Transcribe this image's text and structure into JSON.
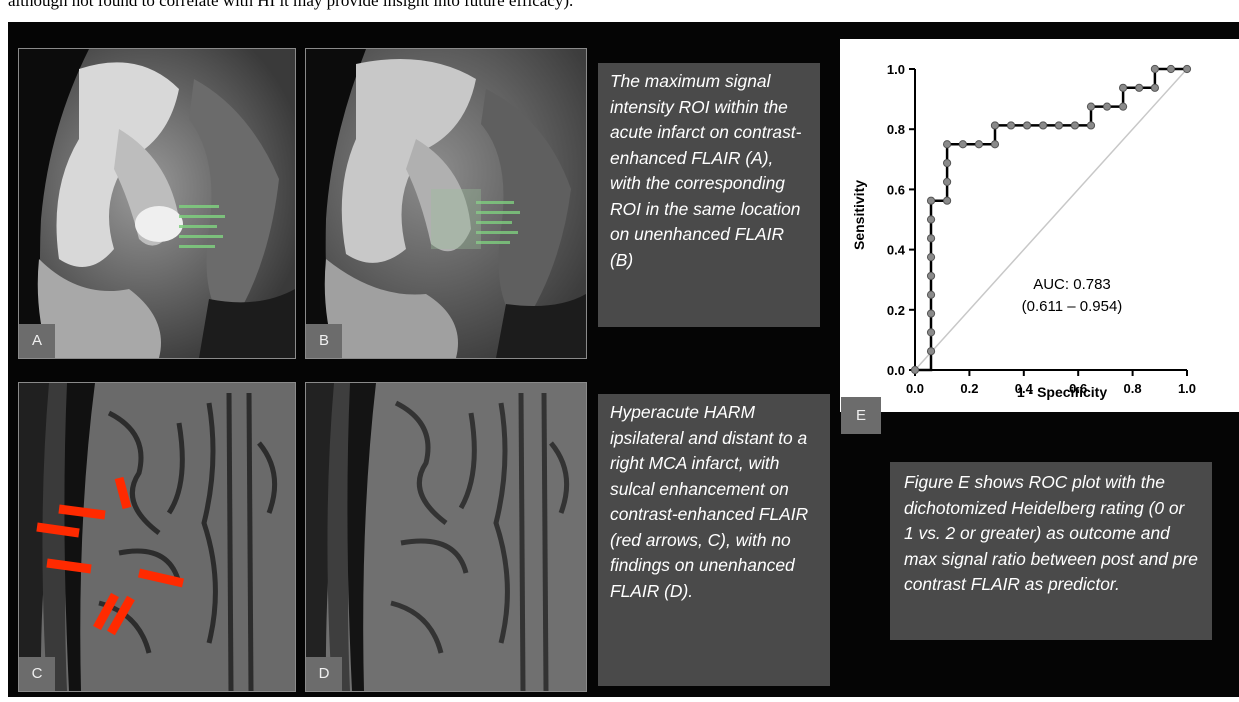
{
  "top_text": "although not found to correlate with HI it may provide insight into future efficacy).",
  "panels": {
    "a": {
      "label": "A"
    },
    "b": {
      "label": "B"
    },
    "c": {
      "label": "C"
    },
    "d": {
      "label": "D"
    },
    "e": {
      "label": "E"
    }
  },
  "captions": {
    "ab": "The maximum signal intensity ROI within the acute infarct on contrast-enhanced FLAIR (A), with the corresponding ROI in the same location on unenhanced FLAIR (B)",
    "cd": "Hyperacute HARM ipsilateral and distant to a right MCA infarct, with sulcal enhancement on contrast-enhanced FLAIR (red arrows, C), with no findings on unenhanced FLAIR (D).",
    "e": "Figure E shows ROC plot with the dichotomized Heidelberg rating (0 or 1 vs. 2 or greater) as outcome and max signal ratio between post and pre contrast FLAIR as predictor."
  },
  "chart_data": {
    "type": "line",
    "xlabel": "1 - Specificity",
    "ylabel": "Sensitivity",
    "xlim": [
      0,
      1
    ],
    "ylim": [
      0,
      1
    ],
    "xticks": [
      "0.0",
      "0.2",
      "0.4",
      "0.6",
      "0.8",
      "1.0"
    ],
    "yticks": [
      "0.0",
      "0.2",
      "0.4",
      "0.6",
      "0.8",
      "1.0"
    ],
    "auc_label": "AUC: 0.783",
    "ci_label": "(0.611 – 0.954)",
    "diagonal_reference": true,
    "roc_steps": [
      [
        0,
        0
      ],
      [
        0.059,
        0
      ],
      [
        0.059,
        0.5625
      ],
      [
        0.118,
        0.5625
      ],
      [
        0.118,
        0.75
      ],
      [
        0.294,
        0.75
      ],
      [
        0.294,
        0.8125
      ],
      [
        0.647,
        0.8125
      ],
      [
        0.647,
        0.875
      ],
      [
        0.765,
        0.875
      ],
      [
        0.765,
        0.9375
      ],
      [
        0.882,
        0.9375
      ],
      [
        0.882,
        1
      ],
      [
        1,
        1
      ]
    ],
    "points": [
      [
        0,
        0
      ],
      [
        0.059,
        0.0625
      ],
      [
        0.059,
        0.125
      ],
      [
        0.059,
        0.1875
      ],
      [
        0.059,
        0.25
      ],
      [
        0.059,
        0.3125
      ],
      [
        0.059,
        0.375
      ],
      [
        0.059,
        0.4375
      ],
      [
        0.059,
        0.5
      ],
      [
        0.059,
        0.5625
      ],
      [
        0.118,
        0.5625
      ],
      [
        0.118,
        0.625
      ],
      [
        0.118,
        0.6875
      ],
      [
        0.118,
        0.75
      ],
      [
        0.176,
        0.75
      ],
      [
        0.235,
        0.75
      ],
      [
        0.294,
        0.75
      ],
      [
        0.294,
        0.8125
      ],
      [
        0.353,
        0.8125
      ],
      [
        0.412,
        0.8125
      ],
      [
        0.471,
        0.8125
      ],
      [
        0.529,
        0.8125
      ],
      [
        0.588,
        0.8125
      ],
      [
        0.647,
        0.8125
      ],
      [
        0.647,
        0.875
      ],
      [
        0.706,
        0.875
      ],
      [
        0.765,
        0.875
      ],
      [
        0.765,
        0.9375
      ],
      [
        0.824,
        0.9375
      ],
      [
        0.882,
        0.9375
      ],
      [
        0.882,
        1
      ],
      [
        0.941,
        1
      ],
      [
        1,
        1
      ]
    ]
  },
  "colors": {
    "background": "#050505",
    "caption_bg": "#4a4a4a",
    "label_bg": "#6c6c6c",
    "arrow": "#ff2a00",
    "roi": "#7fcf7f"
  }
}
